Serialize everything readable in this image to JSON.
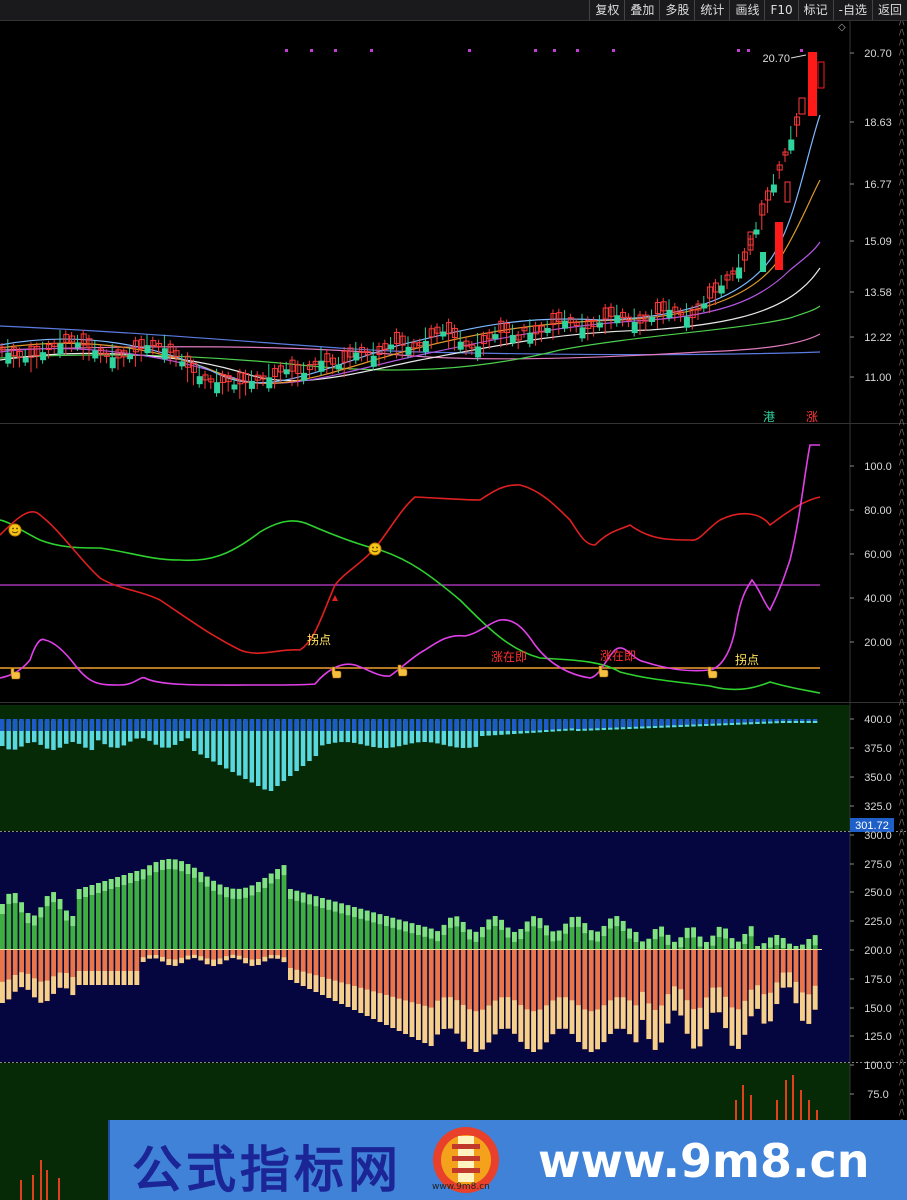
{
  "toolbar": {
    "buttons": [
      "复权",
      "叠加",
      "多股",
      "统计",
      "画线",
      "F10",
      "标记",
      "-自选",
      "返回"
    ]
  },
  "price_panel": {
    "axis_labels": [
      "20.70",
      "18.63",
      "16.77",
      "15.09",
      "13.58",
      "12.22",
      "11.00"
    ],
    "high_label": "20.70",
    "marker_gang": "港",
    "marker_zhang": "涨"
  },
  "indicator_panel": {
    "axis_labels": [
      "100.0",
      "80.00",
      "60.00",
      "40.00",
      "20.00"
    ],
    "annotations": [
      "拐点",
      "涨在即",
      "涨在即",
      "拐点"
    ]
  },
  "volume_panel_1": {
    "axis_labels": [
      "400.0",
      "375.0",
      "350.0",
      "325.0"
    ],
    "current_value": "301.72"
  },
  "volume_panel_2": {
    "axis_labels": [
      "300.0",
      "275.0",
      "250.0",
      "225.0",
      "200.0",
      "175.0",
      "150.0",
      "125.0"
    ]
  },
  "volume_panel_3": {
    "axis_labels": [
      "100.0",
      "75.0"
    ]
  },
  "banner": {
    "title": "公式指标网",
    "url": "www.9m8.cn",
    "logo_text": "www.9m8.cn"
  },
  "colors": {
    "up": "#ff2a2a",
    "down": "#2fd39e",
    "panel_bg": "#000000",
    "panel2_bg": "#062a06",
    "panel3_bg": "#050540",
    "axis_text": "#d8d8d8"
  }
}
